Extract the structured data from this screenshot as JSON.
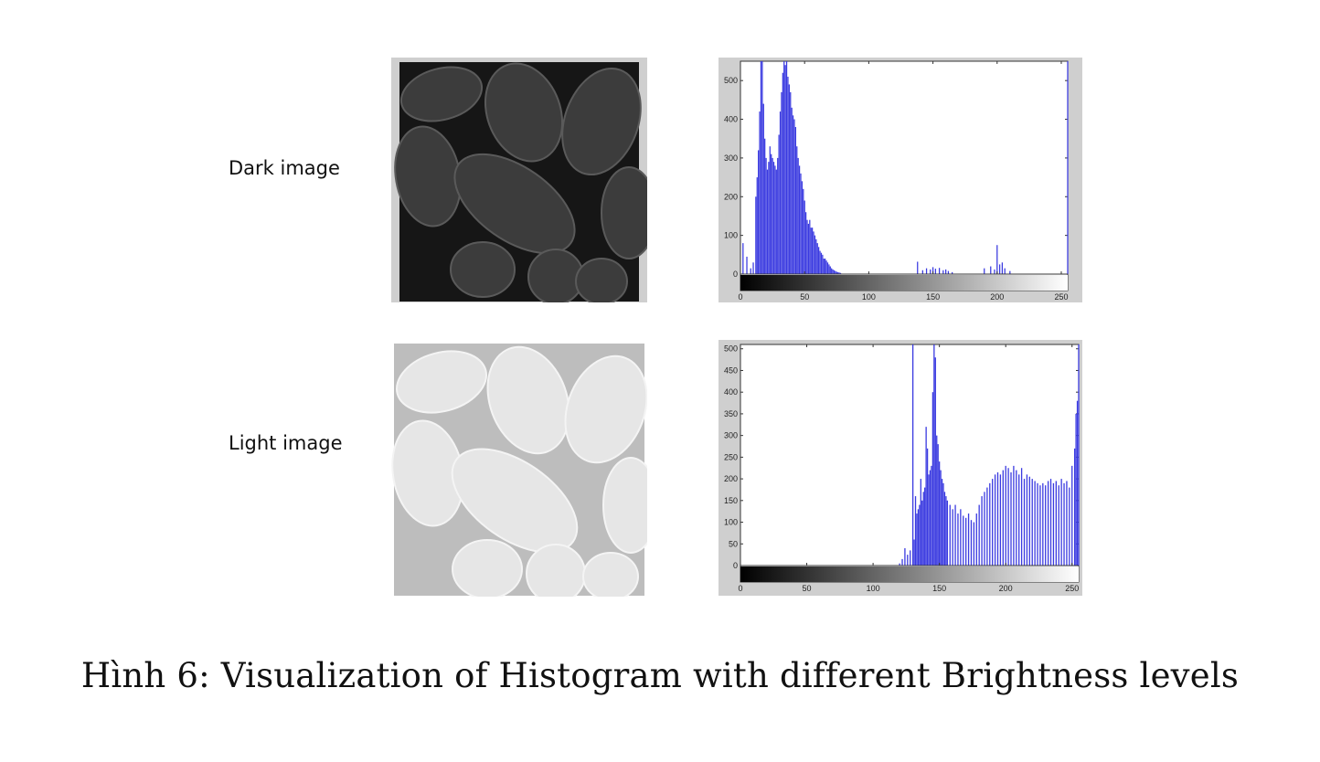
{
  "figure": {
    "caption": "Hình 6: Visualization of Histogram with different Brightness levels",
    "rows": [
      {
        "label": "Dark image"
      },
      {
        "label": "Light image"
      }
    ]
  },
  "chart_data": [
    {
      "type": "bar",
      "title": "",
      "xlabel": "",
      "ylabel": "",
      "xlim": [
        0,
        255
      ],
      "ylim": [
        0,
        550
      ],
      "xticks": [
        0,
        50,
        100,
        150,
        200,
        250
      ],
      "yticks": [
        0,
        100,
        200,
        300,
        400,
        500
      ],
      "bar_color": "#3a3ae0",
      "x": [
        2,
        5,
        8,
        10,
        12,
        13,
        14,
        15,
        16,
        17,
        18,
        19,
        20,
        21,
        22,
        23,
        24,
        25,
        26,
        27,
        28,
        29,
        30,
        31,
        32,
        33,
        34,
        35,
        36,
        37,
        38,
        39,
        40,
        41,
        42,
        43,
        44,
        45,
        46,
        47,
        48,
        49,
        50,
        51,
        52,
        53,
        54,
        55,
        56,
        57,
        58,
        59,
        60,
        61,
        62,
        63,
        64,
        65,
        66,
        67,
        68,
        69,
        70,
        71,
        72,
        73,
        74,
        75,
        76,
        77,
        78,
        138,
        142,
        145,
        148,
        150,
        152,
        155,
        158,
        160,
        162,
        165,
        190,
        195,
        198,
        200,
        202,
        204,
        206,
        210,
        255
      ],
      "y": [
        80,
        45,
        15,
        30,
        200,
        250,
        320,
        420,
        550,
        550,
        440,
        350,
        300,
        270,
        290,
        330,
        310,
        300,
        290,
        280,
        270,
        300,
        360,
        420,
        470,
        520,
        550,
        540,
        560,
        510,
        490,
        470,
        430,
        410,
        400,
        380,
        330,
        300,
        280,
        260,
        240,
        220,
        190,
        160,
        140,
        130,
        140,
        120,
        120,
        110,
        100,
        90,
        80,
        70,
        60,
        55,
        50,
        40,
        40,
        35,
        30,
        25,
        20,
        15,
        12,
        10,
        8,
        6,
        5,
        4,
        3,
        32,
        10,
        15,
        12,
        18,
        14,
        16,
        10,
        12,
        8,
        5,
        15,
        20,
        12,
        75,
        25,
        30,
        15,
        8,
        550
      ],
      "colorbar": {
        "from": "#000000",
        "to": "#ffffff",
        "range": [
          0,
          255
        ]
      }
    },
    {
      "type": "bar",
      "title": "",
      "xlabel": "",
      "ylabel": "",
      "xlim": [
        0,
        255
      ],
      "ylim": [
        0,
        510
      ],
      "xticks": [
        0,
        50,
        100,
        150,
        200,
        250
      ],
      "yticks": [
        0,
        50,
        100,
        150,
        200,
        250,
        300,
        350,
        400,
        450,
        500
      ],
      "bar_color": "#3a3ae0",
      "x": [
        120,
        122,
        124,
        126,
        128,
        130,
        131,
        132,
        133,
        134,
        135,
        136,
        137,
        138,
        139,
        140,
        141,
        142,
        143,
        144,
        145,
        146,
        147,
        148,
        149,
        150,
        151,
        152,
        153,
        154,
        155,
        156,
        158,
        160,
        162,
        164,
        166,
        168,
        170,
        172,
        174,
        176,
        178,
        180,
        182,
        184,
        186,
        188,
        190,
        192,
        194,
        196,
        198,
        200,
        202,
        204,
        206,
        208,
        210,
        212,
        214,
        216,
        218,
        220,
        222,
        224,
        226,
        228,
        230,
        232,
        234,
        236,
        238,
        240,
        242,
        244,
        246,
        248,
        250,
        252,
        253,
        254,
        255
      ],
      "y": [
        5,
        15,
        40,
        25,
        35,
        510,
        60,
        160,
        120,
        130,
        140,
        200,
        150,
        170,
        180,
        320,
        270,
        210,
        220,
        230,
        400,
        510,
        480,
        300,
        280,
        240,
        220,
        200,
        190,
        170,
        160,
        150,
        140,
        130,
        140,
        120,
        130,
        115,
        110,
        120,
        105,
        100,
        120,
        140,
        160,
        170,
        180,
        190,
        200,
        210,
        215,
        210,
        220,
        230,
        225,
        215,
        230,
        220,
        210,
        225,
        200,
        210,
        205,
        200,
        195,
        190,
        185,
        190,
        185,
        195,
        200,
        190,
        195,
        185,
        200,
        190,
        195,
        180,
        230,
        270,
        350,
        380,
        510
      ],
      "colorbar": {
        "from": "#000000",
        "to": "#ffffff",
        "range": [
          0,
          255
        ]
      }
    }
  ]
}
